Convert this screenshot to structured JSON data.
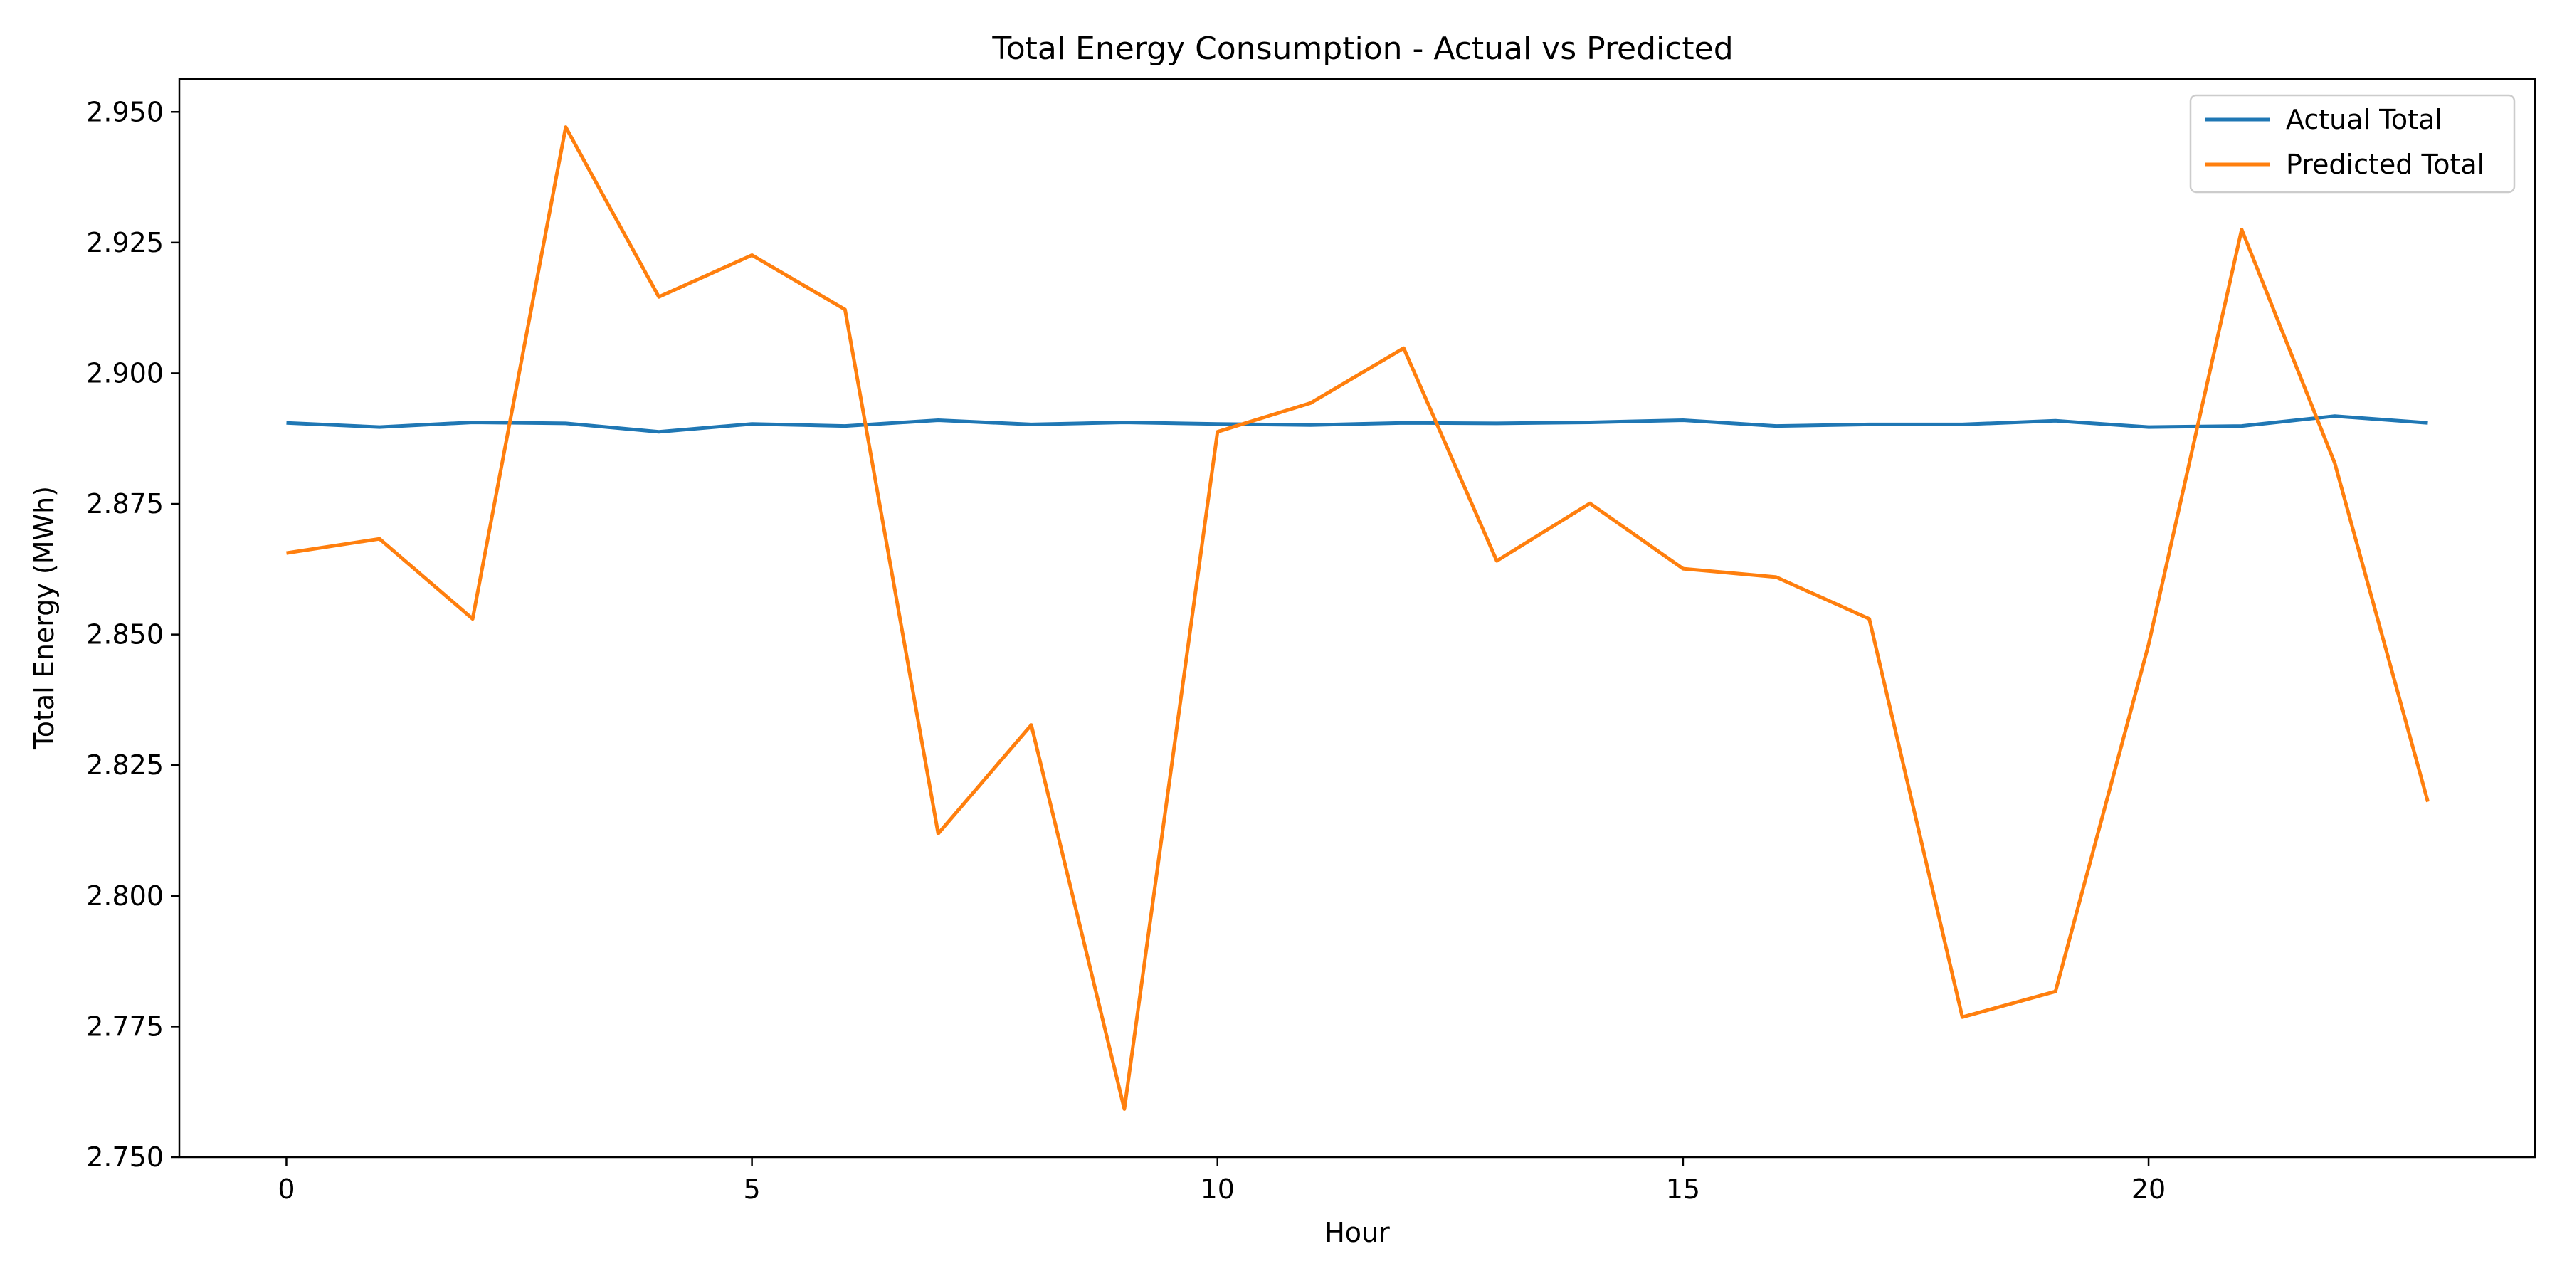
{
  "chart_data": {
    "type": "line",
    "title": "Total Energy Consumption - Actual vs Predicted",
    "xlabel": "Hour",
    "ylabel": "Total Energy (MWh)",
    "xlim": [
      -1.15,
      24.15
    ],
    "ylim": [
      2.75,
      2.9563
    ],
    "x_ticks": [
      0,
      5,
      10,
      15,
      20
    ],
    "y_ticks": [
      2.75,
      2.775,
      2.8,
      2.825,
      2.85,
      2.875,
      2.9,
      2.925,
      2.95
    ],
    "y_tick_labels": [
      "2.750",
      "2.775",
      "2.800",
      "2.825",
      "2.850",
      "2.875",
      "2.900",
      "2.925",
      "2.950"
    ],
    "grid": false,
    "legend_position": "top-right",
    "x": [
      0,
      1,
      2,
      3,
      4,
      5,
      6,
      7,
      8,
      9,
      10,
      11,
      12,
      13,
      14,
      15,
      16,
      17,
      18,
      19,
      20,
      21,
      22,
      23
    ],
    "series": [
      {
        "name": "Actual Total",
        "color": "#1f77b4",
        "values": [
          2.8905,
          2.8897,
          2.8906,
          2.8904,
          2.8888,
          2.8903,
          2.8899,
          2.891,
          2.8902,
          2.8906,
          2.8903,
          2.8901,
          2.8905,
          2.8904,
          2.8906,
          2.891,
          2.8899,
          2.8902,
          2.8902,
          2.8909,
          2.8897,
          2.8899,
          2.8918,
          2.8905
        ]
      },
      {
        "name": "Predicted Total",
        "color": "#ff7f0e",
        "values": [
          2.8656,
          2.8683,
          2.853,
          2.9471,
          2.9146,
          2.9226,
          2.9122,
          2.8119,
          2.8327,
          2.7592,
          2.8888,
          2.8943,
          2.9048,
          2.8641,
          2.8751,
          2.8626,
          2.861,
          2.853,
          2.7768,
          2.7817,
          2.8481,
          2.9275,
          2.8828,
          2.818
        ]
      }
    ]
  }
}
